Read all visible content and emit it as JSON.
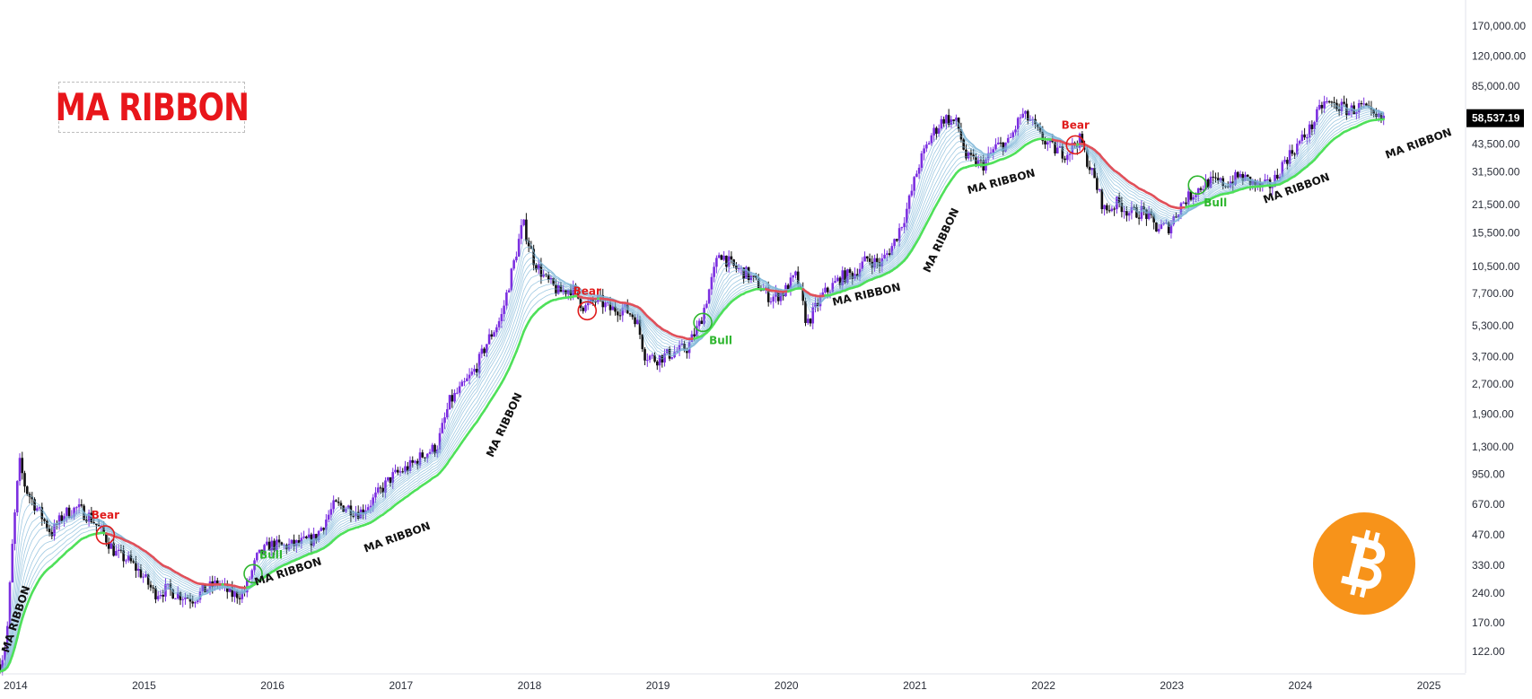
{
  "title": "MA RIBBON",
  "colors": {
    "candle_up": "#7b2fe0",
    "candle_down": "#111111",
    "ribbon_inner": "#7fb7d8",
    "ribbon_bull": "#4fe05a",
    "ribbon_bear": "#e0505a",
    "bear_text": "#e01c1c",
    "bull_text": "#2fb62f",
    "bitcoin": "#f7931a"
  },
  "price_tag": "58,537.19",
  "icon": "bitcoin-icon",
  "chart_data": {
    "type": "candlestick",
    "scale": "log",
    "x_labels": [
      "2014",
      "2015",
      "2016",
      "2017",
      "2018",
      "2019",
      "2020",
      "2021",
      "2022",
      "2023",
      "2024",
      "2025"
    ],
    "x_range": [
      2013.9,
      2025.3
    ],
    "y_labels": [
      "170,000.00",
      "120,000.00",
      "85,000.00",
      "58,537.19",
      "43,500.00",
      "31,500.00",
      "21,500.00",
      "15,500.00",
      "10,500.00",
      "7,700.00",
      "5,300.00",
      "3,700.00",
      "2,700.00",
      "1,900.00",
      "1,300.00",
      "950.00",
      "670.00",
      "470.00",
      "330.00",
      "240.00",
      "170.00",
      "122.00"
    ],
    "y_ticks": [
      170000,
      120000,
      85000,
      43500,
      31500,
      21500,
      15500,
      10500,
      7700,
      5300,
      3700,
      2700,
      1900,
      1300,
      950,
      670,
      470,
      330,
      240,
      170,
      122
    ],
    "y_range": [
      95,
      230000
    ],
    "last_price": 58537.19,
    "price_path": [
      [
        2013.9,
        105
      ],
      [
        2013.95,
        135
      ],
      [
        2014.0,
        450
      ],
      [
        2014.05,
        1100
      ],
      [
        2014.1,
        800
      ],
      [
        2014.2,
        620
      ],
      [
        2014.3,
        480
      ],
      [
        2014.4,
        600
      ],
      [
        2014.5,
        640
      ],
      [
        2014.6,
        580
      ],
      [
        2014.7,
        480
      ],
      [
        2014.8,
        380
      ],
      [
        2014.9,
        350
      ],
      [
        2015.0,
        300
      ],
      [
        2015.1,
        240
      ],
      [
        2015.2,
        250
      ],
      [
        2015.3,
        235
      ],
      [
        2015.4,
        225
      ],
      [
        2015.5,
        250
      ],
      [
        2015.6,
        270
      ],
      [
        2015.7,
        235
      ],
      [
        2015.8,
        240
      ],
      [
        2015.9,
        360
      ],
      [
        2016.0,
        420
      ],
      [
        2016.1,
        410
      ],
      [
        2016.2,
        420
      ],
      [
        2016.35,
        450
      ],
      [
        2016.5,
        660
      ],
      [
        2016.6,
        650
      ],
      [
        2016.7,
        610
      ],
      [
        2016.8,
        700
      ],
      [
        2016.95,
        920
      ],
      [
        2017.1,
        1050
      ],
      [
        2017.2,
        1200
      ],
      [
        2017.3,
        1300
      ],
      [
        2017.4,
        2200
      ],
      [
        2017.5,
        2600
      ],
      [
        2017.6,
        3200
      ],
      [
        2017.7,
        4500
      ],
      [
        2017.8,
        5800
      ],
      [
        2017.9,
        11000
      ],
      [
        2017.97,
        17500
      ],
      [
        2018.05,
        11500
      ],
      [
        2018.15,
        9000
      ],
      [
        2018.25,
        7800
      ],
      [
        2018.35,
        8200
      ],
      [
        2018.45,
        6500
      ],
      [
        2018.55,
        7200
      ],
      [
        2018.65,
        6400
      ],
      [
        2018.75,
        6500
      ],
      [
        2018.85,
        5800
      ],
      [
        2018.92,
        3800
      ],
      [
        2019.0,
        3600
      ],
      [
        2019.15,
        3900
      ],
      [
        2019.25,
        4100
      ],
      [
        2019.35,
        5500
      ],
      [
        2019.45,
        9500
      ],
      [
        2019.5,
        12500
      ],
      [
        2019.6,
        10500
      ],
      [
        2019.7,
        9800
      ],
      [
        2019.8,
        8500
      ],
      [
        2019.9,
        7300
      ],
      [
        2020.0,
        7800
      ],
      [
        2020.1,
        9500
      ],
      [
        2020.18,
        5400
      ],
      [
        2020.3,
        7500
      ],
      [
        2020.45,
        9300
      ],
      [
        2020.55,
        9700
      ],
      [
        2020.65,
        11500
      ],
      [
        2020.75,
        10800
      ],
      [
        2020.85,
        13500
      ],
      [
        2020.95,
        19500
      ],
      [
        2021.05,
        34000
      ],
      [
        2021.15,
        48000
      ],
      [
        2021.25,
        59000
      ],
      [
        2021.35,
        55000
      ],
      [
        2021.42,
        37000
      ],
      [
        2021.55,
        34000
      ],
      [
        2021.65,
        42000
      ],
      [
        2021.75,
        44000
      ],
      [
        2021.85,
        61000
      ],
      [
        2021.92,
        57000
      ],
      [
        2022.0,
        47000
      ],
      [
        2022.1,
        41000
      ],
      [
        2022.2,
        39000
      ],
      [
        2022.3,
        46000
      ],
      [
        2022.4,
        31000
      ],
      [
        2022.5,
        20000
      ],
      [
        2022.6,
        22000
      ],
      [
        2022.7,
        19500
      ],
      [
        2022.8,
        20000
      ],
      [
        2022.9,
        16500
      ],
      [
        2023.0,
        16700
      ],
      [
        2023.1,
        22000
      ],
      [
        2023.2,
        25000
      ],
      [
        2023.3,
        28000
      ],
      [
        2023.45,
        27500
      ],
      [
        2023.55,
        30000
      ],
      [
        2023.7,
        26500
      ],
      [
        2023.8,
        27000
      ],
      [
        2023.9,
        36000
      ],
      [
        2024.0,
        43000
      ],
      [
        2024.1,
        52000
      ],
      [
        2024.2,
        70000
      ],
      [
        2024.3,
        68000
      ],
      [
        2024.4,
        64000
      ],
      [
        2024.5,
        67000
      ],
      [
        2024.6,
        58000
      ],
      [
        2024.68,
        58537
      ]
    ],
    "annotations": [
      {
        "text": "Bear",
        "kind": "bear",
        "x": 2014.72,
        "y": 470
      },
      {
        "text": "Bull",
        "kind": "bull",
        "x": 2015.87,
        "y": 300
      },
      {
        "text": "Bear",
        "kind": "bear",
        "x": 2018.47,
        "y": 6300
      },
      {
        "text": "Bull",
        "kind": "bull",
        "x": 2019.37,
        "y": 5500
      },
      {
        "text": "Bear",
        "kind": "bear",
        "x": 2022.27,
        "y": 43000
      },
      {
        "text": "Bull",
        "kind": "bull",
        "x": 2023.22,
        "y": 27000
      }
    ],
    "ribbon_labels": [
      {
        "text": "MA RIBBON",
        "x": 2014.05,
        "y": 175,
        "angle": -72
      },
      {
        "text": "MA RIBBON",
        "x": 2016.15,
        "y": 295,
        "angle": -18
      },
      {
        "text": "MA RIBBON",
        "x": 2017.0,
        "y": 440,
        "angle": -20
      },
      {
        "text": "MA RIBBON",
        "x": 2017.85,
        "y": 1650,
        "angle": -65
      },
      {
        "text": "MA RIBBON",
        "x": 2020.65,
        "y": 7300,
        "angle": -13
      },
      {
        "text": "MA RIBBON",
        "x": 2021.25,
        "y": 14000,
        "angle": -65
      },
      {
        "text": "MA RIBBON",
        "x": 2021.7,
        "y": 27000,
        "angle": -15
      },
      {
        "text": "MA RIBBON",
        "x": 2024.0,
        "y": 25000,
        "angle": -20
      },
      {
        "text": "MA RIBBON",
        "x": 2024.95,
        "y": 42000,
        "angle": -20
      }
    ]
  }
}
